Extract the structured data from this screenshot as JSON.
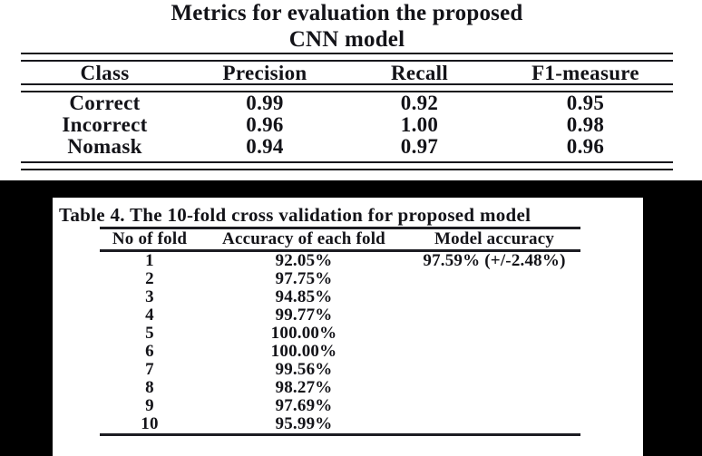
{
  "colors": {
    "text": "#131318",
    "rule": "#17171c",
    "band": "#000000",
    "page": "#ffffff"
  },
  "metrics_table": {
    "title_line1": "Metrics for evaluation the proposed",
    "title_line2": "CNN model",
    "headers": [
      "Class",
      "Precision",
      "Recall",
      "F1-measure"
    ],
    "rows": [
      [
        "Correct",
        "0.99",
        "0.92",
        "0.95"
      ],
      [
        "Incorrect",
        "0.96",
        "1.00",
        "0.98"
      ],
      [
        "Nomask",
        "0.94",
        "0.97",
        "0.96"
      ]
    ]
  },
  "cross_validation_table": {
    "title": "Table 4. The 10-fold cross validation for proposed model",
    "headers": [
      "No of fold",
      "Accuracy of each fold",
      "Model accuracy"
    ],
    "rows": [
      [
        "1",
        "92.05%",
        "97.59% (+/-2.48%)"
      ],
      [
        "2",
        "97.75%",
        ""
      ],
      [
        "3",
        "94.85%",
        ""
      ],
      [
        "4",
        "99.77%",
        ""
      ],
      [
        "5",
        "100.00%",
        ""
      ],
      [
        "6",
        "100.00%",
        ""
      ],
      [
        "7",
        "99.56%",
        ""
      ],
      [
        "8",
        "98.27%",
        ""
      ],
      [
        "9",
        "97.69%",
        ""
      ],
      [
        "10",
        "95.99%",
        ""
      ]
    ]
  }
}
